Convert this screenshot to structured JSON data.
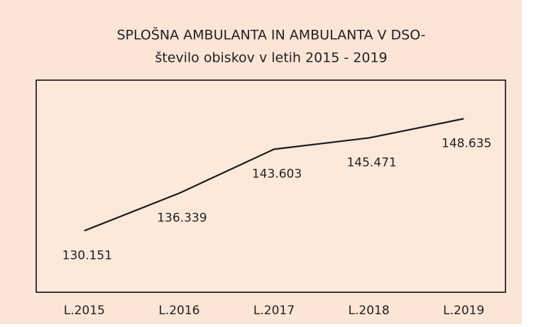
{
  "chart_data": {
    "type": "line",
    "title": "SPLOŠNA AMBULANTA IN AMBULANTA V DSO-",
    "subtitle": "število obiskov v letih 2015 - 2019",
    "categories": [
      "L.2015",
      "L.2016",
      "L.2017",
      "L.2018",
      "L.2019"
    ],
    "values": [
      130151,
      136339,
      143603,
      145471,
      148635
    ],
    "value_labels": [
      "130.151",
      "136.339",
      "143.603",
      "145.471",
      "148.635"
    ],
    "color": "#1a1a1a",
    "ylim": [
      120000,
      155000
    ]
  }
}
